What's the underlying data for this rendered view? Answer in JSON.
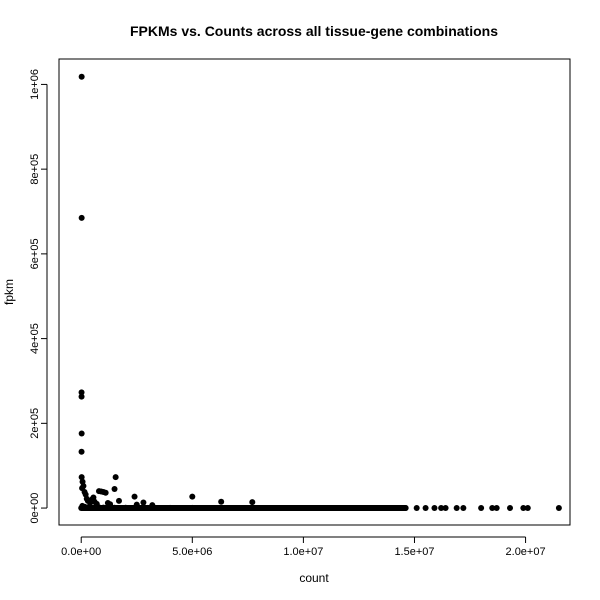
{
  "chart_data": {
    "type": "scatter",
    "title": "FPKMs vs. Counts across all tissue-gene combinations",
    "xlabel": "count",
    "ylabel": "fpkm",
    "xlim": [
      -1000000,
      22000000
    ],
    "ylim": [
      -40000,
      1060000
    ],
    "x_ticks": [
      {
        "value": 0,
        "label": "0.0e+00"
      },
      {
        "value": 5000000,
        "label": "5.0e+06"
      },
      {
        "value": 10000000,
        "label": "1.0e+07"
      },
      {
        "value": 15000000,
        "label": "1.5e+07"
      },
      {
        "value": 20000000,
        "label": "2.0e+07"
      }
    ],
    "y_ticks": [
      {
        "value": 0,
        "label": "0e+00"
      },
      {
        "value": 200000,
        "label": "2e+05"
      },
      {
        "value": 400000,
        "label": "4e+05"
      },
      {
        "value": 600000,
        "label": "6e+05"
      },
      {
        "value": 800000,
        "label": "8e+05"
      },
      {
        "value": 1000000,
        "label": "1e+06"
      }
    ],
    "grid": false,
    "marker_color": "#000000",
    "series": [
      {
        "points": [
          [
            20000,
            1018000
          ],
          [
            20000,
            685000
          ],
          [
            15000,
            273000
          ],
          [
            15000,
            263000
          ],
          [
            20000,
            176000
          ],
          [
            15000,
            133000
          ],
          [
            20000,
            73000
          ],
          [
            60000,
            62000
          ],
          [
            100000,
            52000
          ],
          [
            40000,
            47000
          ],
          [
            150000,
            38000
          ],
          [
            200000,
            32000
          ],
          [
            250000,
            22000
          ],
          [
            300000,
            17000
          ],
          [
            400000,
            13000
          ],
          [
            500000,
            21000
          ],
          [
            550000,
            25000
          ],
          [
            600000,
            15000
          ],
          [
            700000,
            10000
          ],
          [
            800000,
            40000
          ],
          [
            900000,
            39000
          ],
          [
            1000000,
            38000
          ],
          [
            1100000,
            36000
          ],
          [
            1200000,
            12000
          ],
          [
            1300000,
            9000
          ],
          [
            1500000,
            45000
          ],
          [
            1550000,
            73000
          ],
          [
            1700000,
            17000
          ],
          [
            2400000,
            27000
          ],
          [
            2500000,
            8000
          ],
          [
            2800000,
            13000
          ],
          [
            3200000,
            7000
          ],
          [
            5000000,
            27000
          ],
          [
            6300000,
            15000
          ],
          [
            7700000,
            14000
          ],
          [
            50000,
            5000
          ],
          [
            150000,
            3000
          ],
          [
            300000,
            2000
          ],
          [
            500000,
            1000
          ],
          [
            800000,
            1500
          ],
          [
            1000000,
            1000
          ],
          [
            1500000,
            800
          ],
          [
            2000000,
            600
          ],
          [
            3000000,
            500
          ],
          [
            4000000,
            400
          ],
          [
            5000000,
            300
          ],
          [
            6000000,
            250
          ],
          [
            7000000,
            200
          ],
          [
            8000000,
            150
          ],
          [
            9000000,
            120
          ],
          [
            10000000,
            100
          ],
          [
            11000000,
            90
          ],
          [
            12000000,
            80
          ],
          [
            13000000,
            70
          ],
          [
            14000000,
            60
          ],
          [
            14600000,
            50
          ],
          [
            15100000,
            40
          ],
          [
            15500000,
            40
          ],
          [
            15900000,
            35
          ],
          [
            16200000,
            30
          ],
          [
            16400000,
            30
          ],
          [
            16900000,
            25
          ],
          [
            17200000,
            25
          ],
          [
            18000000,
            20
          ],
          [
            18500000,
            20
          ],
          [
            18700000,
            20
          ],
          [
            19300000,
            15
          ],
          [
            19900000,
            15
          ],
          [
            20100000,
            15
          ],
          [
            21500000,
            10
          ]
        ]
      }
    ]
  }
}
